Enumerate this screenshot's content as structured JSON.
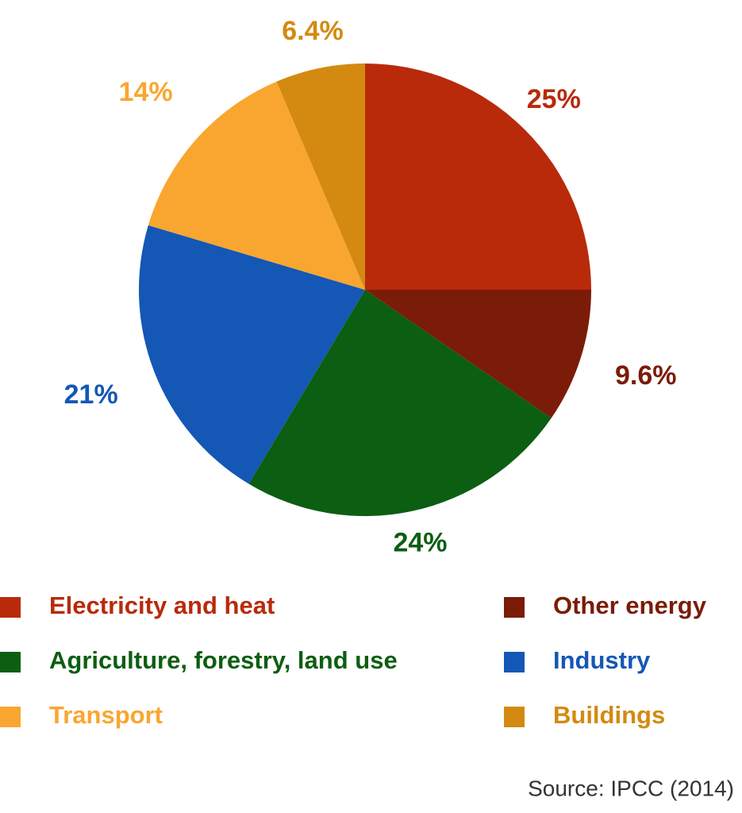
{
  "chart_data": {
    "type": "pie",
    "categories": [
      "Electricity and heat",
      "Other energy",
      "Agriculture, forestry, land use",
      "Industry",
      "Transport",
      "Buildings"
    ],
    "values": [
      25,
      9.6,
      24,
      21,
      14,
      6.4
    ],
    "value_labels": [
      "25%",
      "9.6%",
      "24%",
      "21%",
      "14%",
      "6.4%"
    ],
    "colors": [
      "#b82a0a",
      "#7a1c08",
      "#0c5e12",
      "#1457b5",
      "#f9a630",
      "#d48a10"
    ],
    "source": "Source: IPCC (2014)"
  }
}
